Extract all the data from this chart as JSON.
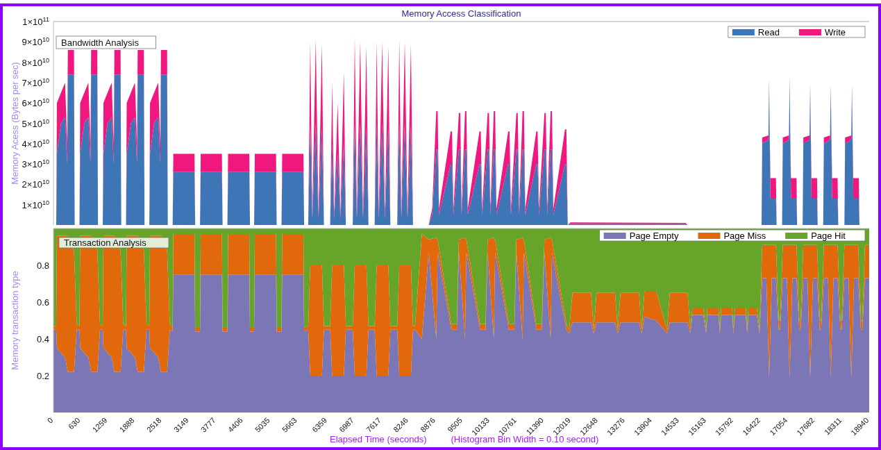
{
  "chart_data": [
    {
      "type": "area",
      "title": "Memory Access Classification",
      "ylabel": "Memory Acess (Bytes per sec)",
      "annotations": [
        "Bandwidth Analysis"
      ],
      "stacked": true,
      "legend": "top right",
      "tick_labels": "y",
      "xlim": [
        0,
        18940
      ],
      "ylim": [
        0,
        100000000000.0
      ],
      "yticks": [
        {
          "value": 10000000000.0,
          "label": "1×10$^{10}$"
        },
        {
          "value": 20000000000.0,
          "label": "2×10$^{10}$"
        },
        {
          "value": 30000000000.0,
          "label": "3×10$^{10}$"
        },
        {
          "value": 40000000000.0,
          "label": "4×10$^{10}$"
        },
        {
          "value": 50000000000.0,
          "label": "5×10$^{10}$"
        },
        {
          "value": 60000000000.0,
          "label": "6×10$^{10}$"
        },
        {
          "value": 70000000000.0,
          "label": "7×10$^{10}$"
        },
        {
          "value": 80000000000.0,
          "label": "8×10$^{10}$"
        },
        {
          "value": 90000000000.0,
          "label": "9×10$^{10}$"
        },
        {
          "value": 100000000000.0,
          "label": "1×10$^{11}$"
        }
      ],
      "x": [
        0,
        64,
        80,
        175,
        270,
        318,
        334,
        477,
        493,
        604,
        620,
        716,
        811,
        859,
        875,
        1018,
        1034,
        1145,
        1161,
        1256,
        1352,
        1399,
        1415,
        1558,
        1574,
        1685,
        1701,
        1797,
        1892,
        1940,
        1956,
        2099,
        2115,
        2226,
        2242,
        2337,
        2433,
        2480,
        2496,
        2639,
        2655,
        2767,
        2783,
        3275,
        3291,
        3403,
        3419,
        3911,
        3927,
        4039,
        4055,
        4547,
        4563,
        4659,
        4675,
        5168,
        5183,
        5295,
        5311,
        5804,
        5820,
        5915,
        5963,
        6010,
        6090,
        6153,
        6233,
        6280,
        6424,
        6471,
        6519,
        6599,
        6662,
        6742,
        6789,
        6948,
        6996,
        7044,
        7123,
        7187,
        7266,
        7314,
        7457,
        7505,
        7553,
        7632,
        7696,
        7775,
        7823,
        7982,
        8030,
        8077,
        8157,
        8220,
        8300,
        8348,
        8713,
        8793,
        8888,
        8920,
        8952,
        9222,
        9254,
        9286,
        9413,
        9445,
        9476,
        9556,
        9588,
        9620,
        9890,
        9922,
        9953,
        10081,
        10113,
        10144,
        10224,
        10255,
        10287,
        10558,
        10589,
        10621,
        10748,
        10780,
        10812,
        10892,
        10924,
        10955,
        11210,
        11241,
        11273,
        11400,
        11432,
        11464,
        11543,
        11575,
        11607,
        11877,
        11909,
        11941,
        12005,
        14676,
        14723,
        16441,
        16457,
        16600,
        16616,
        16631,
        16647,
        16775,
        16790,
        16918,
        16934,
        17077,
        17092,
        17108,
        17124,
        17252,
        17267,
        17395,
        17411,
        17554,
        17570,
        17585,
        17601,
        17729,
        17744,
        17872,
        17888,
        18031,
        18047,
        18063,
        18078,
        18206,
        18222,
        18365,
        18380,
        18524,
        18539,
        18555,
        18571,
        18698,
        18714,
        18940
      ],
      "series": [
        {
          "name": "Read",
          "color": "#3e75b6",
          "values": [
            0,
            0,
            35000000000.0,
            50000000000.0,
            53000000000.0,
            30000000000.0,
            74000000000.0,
            74000000000.0,
            0,
            0,
            35000000000.0,
            50000000000.0,
            53000000000.0,
            30000000000.0,
            74000000000.0,
            74000000000.0,
            0,
            0,
            35000000000.0,
            50000000000.0,
            53000000000.0,
            30000000000.0,
            74000000000.0,
            74000000000.0,
            0,
            0,
            35000000000.0,
            50000000000.0,
            53000000000.0,
            30000000000.0,
            74000000000.0,
            74000000000.0,
            0,
            0,
            35000000000.0,
            50000000000.0,
            53000000000.0,
            30000000000.0,
            74000000000.0,
            74000000000.0,
            0,
            0,
            26000000000.0,
            26000000000.0,
            0,
            0,
            26000000000.0,
            26000000000.0,
            0,
            0,
            26000000000.0,
            26000000000.0,
            0,
            0,
            26000000000.0,
            26000000000.0,
            0,
            0,
            26000000000.0,
            26000000000.0,
            0,
            0,
            50000000000.0,
            3000000000.0,
            50000000000.0,
            3000000000.0,
            48000000000.0,
            0,
            0,
            40000000000.0,
            3000000000.0,
            35000000000.0,
            3000000000.0,
            40000000000.0,
            0,
            0,
            50000000000.0,
            3000000000.0,
            50000000000.0,
            3000000000.0,
            48000000000.0,
            0,
            0,
            50000000000.0,
            3000000000.0,
            50000000000.0,
            3000000000.0,
            48000000000.0,
            0,
            0,
            50000000000.0,
            3000000000.0,
            50000000000.0,
            3000000000.0,
            49000000000.0,
            0,
            0,
            5000000000.0,
            37000000000.0,
            37000000000.0,
            5000000000.0,
            30000000000.0,
            30000000000.0,
            5000000000.0,
            37000000000.0,
            37000000000.0,
            5000000000.0,
            37000000000.0,
            37000000000.0,
            5000000000.0,
            30000000000.0,
            30000000000.0,
            5000000000.0,
            37000000000.0,
            37000000000.0,
            5000000000.0,
            37000000000.0,
            37000000000.0,
            5000000000.0,
            30000000000.0,
            30000000000.0,
            5000000000.0,
            37000000000.0,
            37000000000.0,
            5000000000.0,
            37000000000.0,
            37000000000.0,
            5000000000.0,
            30000000000.0,
            30000000000.0,
            5000000000.0,
            37000000000.0,
            37000000000.0,
            5000000000.0,
            37000000000.0,
            37000000000.0,
            5000000000.0,
            30000000000.0,
            30000000000.0,
            0,
            500000000.0,
            500000000.0,
            0,
            0,
            40000000000.0,
            42000000000.0,
            72000000000.0,
            42000000000.0,
            13000000000.0,
            13000000000.0,
            0,
            0,
            40000000000.0,
            42000000000.0,
            73000000000.0,
            42000000000.0,
            13000000000.0,
            13000000000.0,
            0,
            0,
            40000000000.0,
            42000000000.0,
            70000000000.0,
            42000000000.0,
            13000000000.0,
            13000000000.0,
            0,
            0,
            40000000000.0,
            42000000000.0,
            69000000000.0,
            42000000000.0,
            13000000000.0,
            13000000000.0,
            0,
            0,
            40000000000.0,
            42000000000.0,
            69000000000.0,
            42000000000.0,
            13000000000.0,
            13000000000.0,
            0,
            0
          ]
        },
        {
          "name": "Write",
          "color": "#f0177f",
          "values": [
            0,
            0,
            25000000000.0,
            15000000000.0,
            17000000000.0,
            10000000000.0,
            12000000000.0,
            12000000000.0,
            0,
            0,
            25000000000.0,
            15000000000.0,
            17000000000.0,
            10000000000.0,
            12000000000.0,
            12000000000.0,
            0,
            0,
            25000000000.0,
            15000000000.0,
            17000000000.0,
            10000000000.0,
            12000000000.0,
            12000000000.0,
            0,
            0,
            25000000000.0,
            15000000000.0,
            17000000000.0,
            10000000000.0,
            12000000000.0,
            12000000000.0,
            0,
            0,
            25000000000.0,
            15000000000.0,
            17000000000.0,
            10000000000.0,
            12000000000.0,
            12000000000.0,
            0,
            0,
            9000000000.0,
            9000000000.0,
            0,
            0,
            9000000000.0,
            9000000000.0,
            0,
            0,
            9000000000.0,
            9000000000.0,
            0,
            0,
            9000000000.0,
            9000000000.0,
            0,
            0,
            9000000000.0,
            9000000000.0,
            0,
            0,
            40000000000.0,
            2000000000.0,
            41000000000.0,
            2000000000.0,
            41000000000.0,
            0,
            0,
            30000000000.0,
            2000000000.0,
            25000000000.0,
            2000000000.0,
            35000000000.0,
            0,
            0,
            42000000000.0,
            2000000000.0,
            40000000000.0,
            2000000000.0,
            40000000000.0,
            0,
            0,
            40000000000.0,
            2000000000.0,
            40000000000.0,
            2000000000.0,
            40000000000.0,
            0,
            0,
            41000000000.0,
            2000000000.0,
            40000000000.0,
            2000000000.0,
            40000000000.0,
            0,
            0,
            3000000000.0,
            19000000000.0,
            19000000000.0,
            3000000000.0,
            16000000000.0,
            16000000000.0,
            3000000000.0,
            18000000000.0,
            18000000000.0,
            3000000000.0,
            19000000000.0,
            19000000000.0,
            3000000000.0,
            16000000000.0,
            16000000000.0,
            3000000000.0,
            18000000000.0,
            18000000000.0,
            3000000000.0,
            19000000000.0,
            19000000000.0,
            3000000000.0,
            16000000000.0,
            16000000000.0,
            3000000000.0,
            18000000000.0,
            18000000000.0,
            3000000000.0,
            19000000000.0,
            19000000000.0,
            3000000000.0,
            16000000000.0,
            16000000000.0,
            3000000000.0,
            18000000000.0,
            18000000000.0,
            3000000000.0,
            19000000000.0,
            19000000000.0,
            3000000000.0,
            17000000000.0,
            17000000000.0,
            0,
            800000000.0,
            500000000.0,
            0,
            0,
            3000000000.0,
            2000000000.0,
            0,
            2000000000.0,
            10000000000.0,
            10000000000.0,
            0,
            0,
            3000000000.0,
            2000000000.0,
            0,
            2000000000.0,
            10000000000.0,
            10000000000.0,
            0,
            0,
            3000000000.0,
            2000000000.0,
            0,
            2000000000.0,
            10000000000.0,
            10000000000.0,
            0,
            0,
            3000000000.0,
            2000000000.0,
            0,
            2000000000.0,
            10000000000.0,
            10000000000.0,
            0,
            0,
            3000000000.0,
            2000000000.0,
            0,
            2000000000.0,
            10000000000.0,
            10000000000.0,
            0,
            0
          ]
        }
      ]
    },
    {
      "type": "area",
      "xlabel": "Elapsed Time (seconds)",
      "ylabel": "Memory transaction type",
      "annotations": [
        "Transaction Analysis",
        "(Histogram Bin Width = 0.10 second)"
      ],
      "stacked": true,
      "legend": "top right",
      "xlim": [
        0,
        18940
      ],
      "ylim": [
        0,
        1
      ],
      "yticks": [
        0.2,
        0.4,
        0.6,
        0.8
      ],
      "xticks": [
        0,
        630,
        1259,
        1888,
        2518,
        3149,
        3777,
        4406,
        5035,
        5663,
        6359,
        6987,
        7617,
        8246,
        8876,
        9505,
        10133,
        10761,
        11390,
        12019,
        12648,
        13276,
        13904,
        14533,
        15163,
        15792,
        16422,
        17054,
        17682,
        18311,
        18940
      ],
      "x": [
        0,
        64,
        80,
        270,
        334,
        477,
        540,
        604,
        620,
        811,
        875,
        1018,
        1080,
        1145,
        1161,
        1352,
        1415,
        1558,
        1620,
        1685,
        1701,
        1892,
        1956,
        2099,
        2160,
        2226,
        2242,
        2433,
        2496,
        2639,
        2700,
        2767,
        2783,
        3275,
        3291,
        3403,
        3419,
        3911,
        3927,
        4039,
        4055,
        4547,
        4563,
        4659,
        4675,
        5168,
        5183,
        5295,
        5311,
        5804,
        5820,
        5915,
        5963,
        6233,
        6280,
        6424,
        6471,
        6742,
        6789,
        6948,
        6996,
        7266,
        7314,
        7457,
        7505,
        7775,
        7823,
        7982,
        8030,
        8300,
        8348,
        8395,
        8554,
        8713,
        8888,
        8920,
        9238,
        9365,
        9413,
        9556,
        9588,
        9906,
        10033,
        10081,
        10224,
        10255,
        10574,
        10701,
        10748,
        10892,
        10924,
        11210,
        11337,
        11400,
        11543,
        11575,
        11909,
        11973,
        12052,
        12482,
        12545,
        12609,
        13038,
        13102,
        13165,
        13595,
        13658,
        13722,
        13992,
        14246,
        14310,
        14723,
        14787,
        14835,
        15089,
        15153,
        15185,
        15439,
        15471,
        15503,
        15757,
        15789,
        15821,
        16075,
        16106,
        16138,
        16330,
        16393,
        16457,
        16552,
        16616,
        16680,
        16775,
        16839,
        16870,
        16934,
        17029,
        17093,
        17157,
        17252,
        17316,
        17347,
        17411,
        17506,
        17570,
        17634,
        17729,
        17793,
        17824,
        17888,
        17983,
        18047,
        18111,
        18206,
        18270,
        18301,
        18365,
        18460,
        18524,
        18588,
        18683,
        18747,
        18778,
        18842,
        18940
      ],
      "series": [
        {
          "name": "Page Empty",
          "color": "#7b76b6",
          "values": [
            0.45,
            0.45,
            0.35,
            0.3,
            0.22,
            0.22,
            0.45,
            0.45,
            0.35,
            0.3,
            0.22,
            0.22,
            0.45,
            0.45,
            0.35,
            0.3,
            0.22,
            0.22,
            0.45,
            0.45,
            0.35,
            0.3,
            0.22,
            0.22,
            0.45,
            0.45,
            0.35,
            0.3,
            0.22,
            0.22,
            0.45,
            0.44,
            0.75,
            0.75,
            0.44,
            0.44,
            0.75,
            0.75,
            0.44,
            0.44,
            0.75,
            0.75,
            0.44,
            0.44,
            0.75,
            0.75,
            0.44,
            0.44,
            0.75,
            0.75,
            0.44,
            0.45,
            0.2,
            0.2,
            0.45,
            0.45,
            0.2,
            0.2,
            0.45,
            0.45,
            0.2,
            0.2,
            0.45,
            0.45,
            0.2,
            0.2,
            0.45,
            0.45,
            0.2,
            0.2,
            0.45,
            0.45,
            0.4,
            0.87,
            0.4,
            0.87,
            0.45,
            0.45,
            0.87,
            0.4,
            0.87,
            0.45,
            0.45,
            0.87,
            0.4,
            0.87,
            0.45,
            0.45,
            0.87,
            0.4,
            0.87,
            0.45,
            0.45,
            0.87,
            0.4,
            0.87,
            0.45,
            0.43,
            0.49,
            0.49,
            0.43,
            0.49,
            0.49,
            0.43,
            0.49,
            0.49,
            0.43,
            0.52,
            0.5,
            0.43,
            0.49,
            0.49,
            0.43,
            0.53,
            0.53,
            0.43,
            0.53,
            0.53,
            0.43,
            0.53,
            0.53,
            0.43,
            0.53,
            0.53,
            0.43,
            0.53,
            0.53,
            0.43,
            0.73,
            0.73,
            0.19,
            0.73,
            0.73,
            0.45,
            0.45,
            0.73,
            0.73,
            0.19,
            0.73,
            0.73,
            0.45,
            0.45,
            0.73,
            0.73,
            0.19,
            0.73,
            0.73,
            0.45,
            0.45,
            0.73,
            0.73,
            0.19,
            0.73,
            0.73,
            0.45,
            0.45,
            0.73,
            0.73,
            0.19,
            0.73,
            0.73,
            0.45,
            0.45,
            0.73,
            0.73
          ]
        },
        {
          "name": "Page Miss",
          "color": "#e2680c",
          "values": [
            0.02,
            0.02,
            0.61,
            0.66,
            0.74,
            0.66,
            0.03,
            0.02,
            0.61,
            0.66,
            0.74,
            0.66,
            0.03,
            0.02,
            0.61,
            0.66,
            0.74,
            0.66,
            0.03,
            0.02,
            0.61,
            0.66,
            0.74,
            0.66,
            0.03,
            0.02,
            0.61,
            0.66,
            0.74,
            0.66,
            0.03,
            0.02,
            0.22,
            0.22,
            0.02,
            0.02,
            0.22,
            0.22,
            0.02,
            0.02,
            0.22,
            0.22,
            0.02,
            0.02,
            0.22,
            0.22,
            0.02,
            0.02,
            0.22,
            0.22,
            0.02,
            0.02,
            0.6,
            0.6,
            0.02,
            0.02,
            0.6,
            0.6,
            0.02,
            0.02,
            0.6,
            0.6,
            0.02,
            0.02,
            0.6,
            0.6,
            0.02,
            0.02,
            0.6,
            0.6,
            0.02,
            0.02,
            0.57,
            0.07,
            0.55,
            0.07,
            0.03,
            0.03,
            0.07,
            0.55,
            0.07,
            0.03,
            0.03,
            0.07,
            0.55,
            0.07,
            0.03,
            0.03,
            0.07,
            0.55,
            0.07,
            0.03,
            0.03,
            0.07,
            0.55,
            0.07,
            0.03,
            0.02,
            0.16,
            0.16,
            0.02,
            0.16,
            0.16,
            0.02,
            0.16,
            0.16,
            0.02,
            0.14,
            0.16,
            0.02,
            0.16,
            0.16,
            0.02,
            0.04,
            0.04,
            0.02,
            0.04,
            0.04,
            0.02,
            0.04,
            0.04,
            0.02,
            0.04,
            0.04,
            0.02,
            0.04,
            0.04,
            0.02,
            0.18,
            0.18,
            0.72,
            0.18,
            0.18,
            0.05,
            0.05,
            0.18,
            0.18,
            0.72,
            0.18,
            0.18,
            0.05,
            0.05,
            0.18,
            0.18,
            0.72,
            0.18,
            0.18,
            0.05,
            0.05,
            0.18,
            0.18,
            0.72,
            0.18,
            0.18,
            0.05,
            0.05,
            0.18,
            0.18,
            0.72,
            0.18,
            0.18,
            0.05,
            0.05,
            0.18,
            0.18
          ]
        },
        {
          "name": "Page Hit",
          "color": "#66a52a",
          "values": [
            0.53,
            0.53,
            0.04,
            0.04,
            0.04,
            0.12,
            0.52,
            0.53,
            0.04,
            0.04,
            0.04,
            0.12,
            0.52,
            0.53,
            0.04,
            0.04,
            0.04,
            0.12,
            0.52,
            0.53,
            0.04,
            0.04,
            0.04,
            0.12,
            0.52,
            0.53,
            0.04,
            0.04,
            0.04,
            0.12,
            0.52,
            0.54,
            0.03,
            0.03,
            0.54,
            0.54,
            0.03,
            0.03,
            0.54,
            0.54,
            0.03,
            0.03,
            0.54,
            0.54,
            0.03,
            0.03,
            0.54,
            0.54,
            0.03,
            0.03,
            0.54,
            0.53,
            0.2,
            0.2,
            0.53,
            0.53,
            0.2,
            0.2,
            0.53,
            0.53,
            0.2,
            0.2,
            0.53,
            0.53,
            0.2,
            0.2,
            0.53,
            0.53,
            0.2,
            0.2,
            0.53,
            0.53,
            0.03,
            0.06,
            0.05,
            0.06,
            0.52,
            0.52,
            0.06,
            0.05,
            0.06,
            0.52,
            0.52,
            0.06,
            0.05,
            0.06,
            0.52,
            0.52,
            0.06,
            0.05,
            0.06,
            0.52,
            0.52,
            0.06,
            0.05,
            0.06,
            0.52,
            0.55,
            0.35,
            0.35,
            0.55,
            0.35,
            0.35,
            0.55,
            0.35,
            0.35,
            0.55,
            0.34,
            0.34,
            0.55,
            0.35,
            0.35,
            0.55,
            0.43,
            0.43,
            0.55,
            0.43,
            0.43,
            0.55,
            0.43,
            0.43,
            0.55,
            0.43,
            0.43,
            0.55,
            0.43,
            0.43,
            0.55,
            0.09,
            0.09,
            0.09,
            0.09,
            0.09,
            0.5,
            0.5,
            0.09,
            0.09,
            0.09,
            0.09,
            0.09,
            0.5,
            0.5,
            0.09,
            0.09,
            0.09,
            0.09,
            0.09,
            0.5,
            0.5,
            0.09,
            0.09,
            0.09,
            0.09,
            0.09,
            0.5,
            0.5,
            0.09,
            0.09,
            0.09,
            0.09,
            0.09,
            0.5,
            0.5,
            0.09,
            0.09
          ]
        }
      ]
    }
  ]
}
